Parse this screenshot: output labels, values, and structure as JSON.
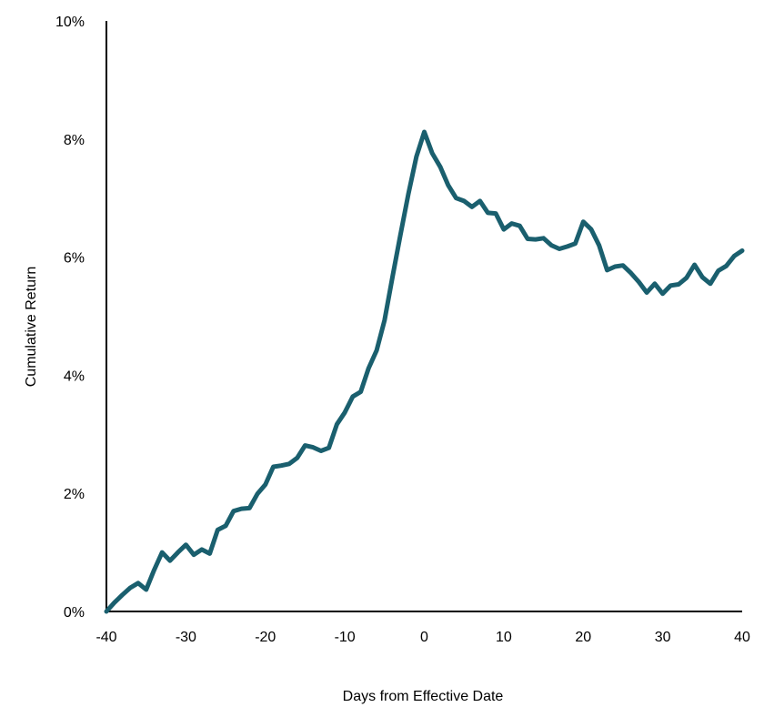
{
  "chart_data": {
    "type": "line",
    "title": "",
    "xlabel": "Days from Effective Date",
    "ylabel": "Cumulative Return",
    "xlim": [
      -40,
      40
    ],
    "ylim": [
      0,
      10
    ],
    "x_ticks": [
      -40,
      -30,
      -20,
      -10,
      0,
      10,
      20,
      30,
      40
    ],
    "x_tick_labels": [
      "-40",
      "-30",
      "-20",
      "-10",
      "0",
      "10",
      "20",
      "30",
      "40"
    ],
    "y_ticks": [
      0,
      2,
      4,
      6,
      8,
      10
    ],
    "y_tick_labels": [
      "0%",
      "2%",
      "4%",
      "6%",
      "8%",
      "10%"
    ],
    "grid": false,
    "legend": "none",
    "line_color": "#1a5f6e",
    "series": [
      {
        "x": [
          -40,
          -39,
          -38,
          -37,
          -36,
          -35,
          -34,
          -33,
          -32,
          -31,
          -30,
          -29,
          -28,
          -27,
          -26,
          -25,
          -24,
          -23,
          -22,
          -21,
          -20,
          -19,
          -18,
          -17,
          -16,
          -15,
          -14,
          -13,
          -12,
          -11,
          -10,
          -9,
          -8,
          -7,
          -6,
          -5,
          -4,
          -3,
          -2,
          -1,
          0,
          1,
          2,
          3,
          4,
          5,
          6,
          7,
          8,
          9,
          10,
          11,
          12,
          13,
          14,
          15,
          16,
          17,
          18,
          19,
          20,
          21,
          22,
          23,
          24,
          25,
          26,
          27,
          28,
          29,
          30,
          31,
          32,
          33,
          34,
          35,
          36,
          37,
          38,
          39,
          40
        ],
        "y": [
          0.0,
          0.15,
          0.28,
          0.4,
          0.48,
          0.37,
          0.7,
          1.0,
          0.86,
          1.0,
          1.13,
          0.96,
          1.05,
          0.98,
          1.38,
          1.45,
          1.7,
          1.74,
          1.75,
          1.99,
          2.15,
          2.45,
          2.47,
          2.5,
          2.6,
          2.81,
          2.78,
          2.72,
          2.77,
          3.17,
          3.37,
          3.64,
          3.72,
          4.12,
          4.42,
          4.93,
          5.67,
          6.38,
          7.07,
          7.7,
          8.12,
          7.76,
          7.53,
          7.22,
          7.0,
          6.95,
          6.85,
          6.95,
          6.75,
          6.74,
          6.47,
          6.57,
          6.53,
          6.31,
          6.3,
          6.32,
          6.2,
          6.14,
          6.18,
          6.23,
          6.6,
          6.47,
          6.2,
          5.78,
          5.84,
          5.86,
          5.73,
          5.58,
          5.4,
          5.55,
          5.38,
          5.52,
          5.54,
          5.65,
          5.87,
          5.66,
          5.55,
          5.77,
          5.85,
          6.02,
          6.11
        ]
      }
    ]
  }
}
